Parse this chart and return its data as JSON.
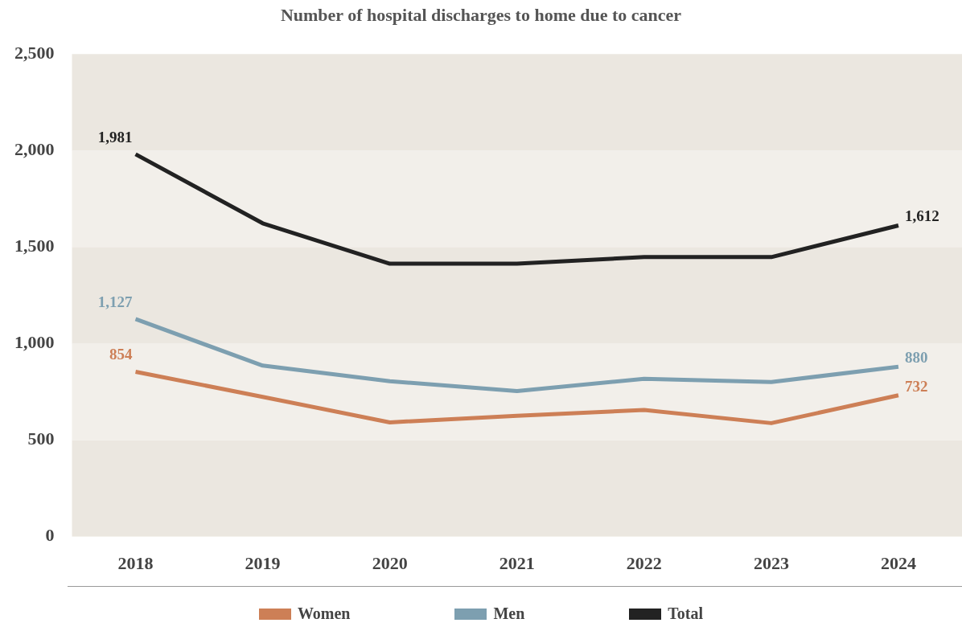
{
  "chart_data": {
    "type": "line",
    "title": "Number of hospital discharges to home due to cancer",
    "categories": [
      "2018",
      "2019",
      "2020",
      "2021",
      "2022",
      "2023",
      "2024"
    ],
    "series": [
      {
        "name": "Women",
        "color": "#cd7f56",
        "values": [
          854,
          724,
          592,
          626,
          656,
          588,
          732
        ],
        "value_labels": [
          "854",
          null,
          null,
          null,
          null,
          null,
          "732"
        ]
      },
      {
        "name": "Men",
        "color": "#7d9fb0",
        "values": [
          1127,
          886,
          805,
          754,
          818,
          801,
          880
        ],
        "value_labels": [
          "1,127",
          null,
          null,
          null,
          null,
          null,
          "880"
        ]
      },
      {
        "name": "Total",
        "color": "#222222",
        "values": [
          1981,
          1623,
          1414,
          1414,
          1448,
          1448,
          1612
        ],
        "value_labels": [
          "1,981",
          null,
          null,
          null,
          null,
          null,
          "1,612"
        ]
      }
    ],
    "ylim": [
      0,
      2500
    ],
    "yticks": [
      0,
      {
        "value": 500,
        "label": "500"
      },
      {
        "value": 1000,
        "label": "1,000"
      },
      {
        "value": 1500,
        "label": "1,500"
      },
      {
        "value": 2000,
        "label": "2,000"
      },
      {
        "value": 2500,
        "label": "2,500"
      }
    ],
    "bands": [
      {
        "axis": "y",
        "from": 0,
        "to": 500,
        "color": "#ebe7e0"
      },
      {
        "axis": "y",
        "from": 500,
        "to": 1000,
        "color": "#f2efea"
      },
      {
        "axis": "y",
        "from": 1000,
        "to": 1500,
        "color": "#ebe7e0"
      },
      {
        "axis": "y",
        "from": 1500,
        "to": 2000,
        "color": "#f2efea"
      },
      {
        "axis": "y",
        "from": 2000,
        "to": 2500,
        "color": "#ebe7e0"
      }
    ],
    "legend": "bottom",
    "marker": "none",
    "line_style": "solid"
  }
}
